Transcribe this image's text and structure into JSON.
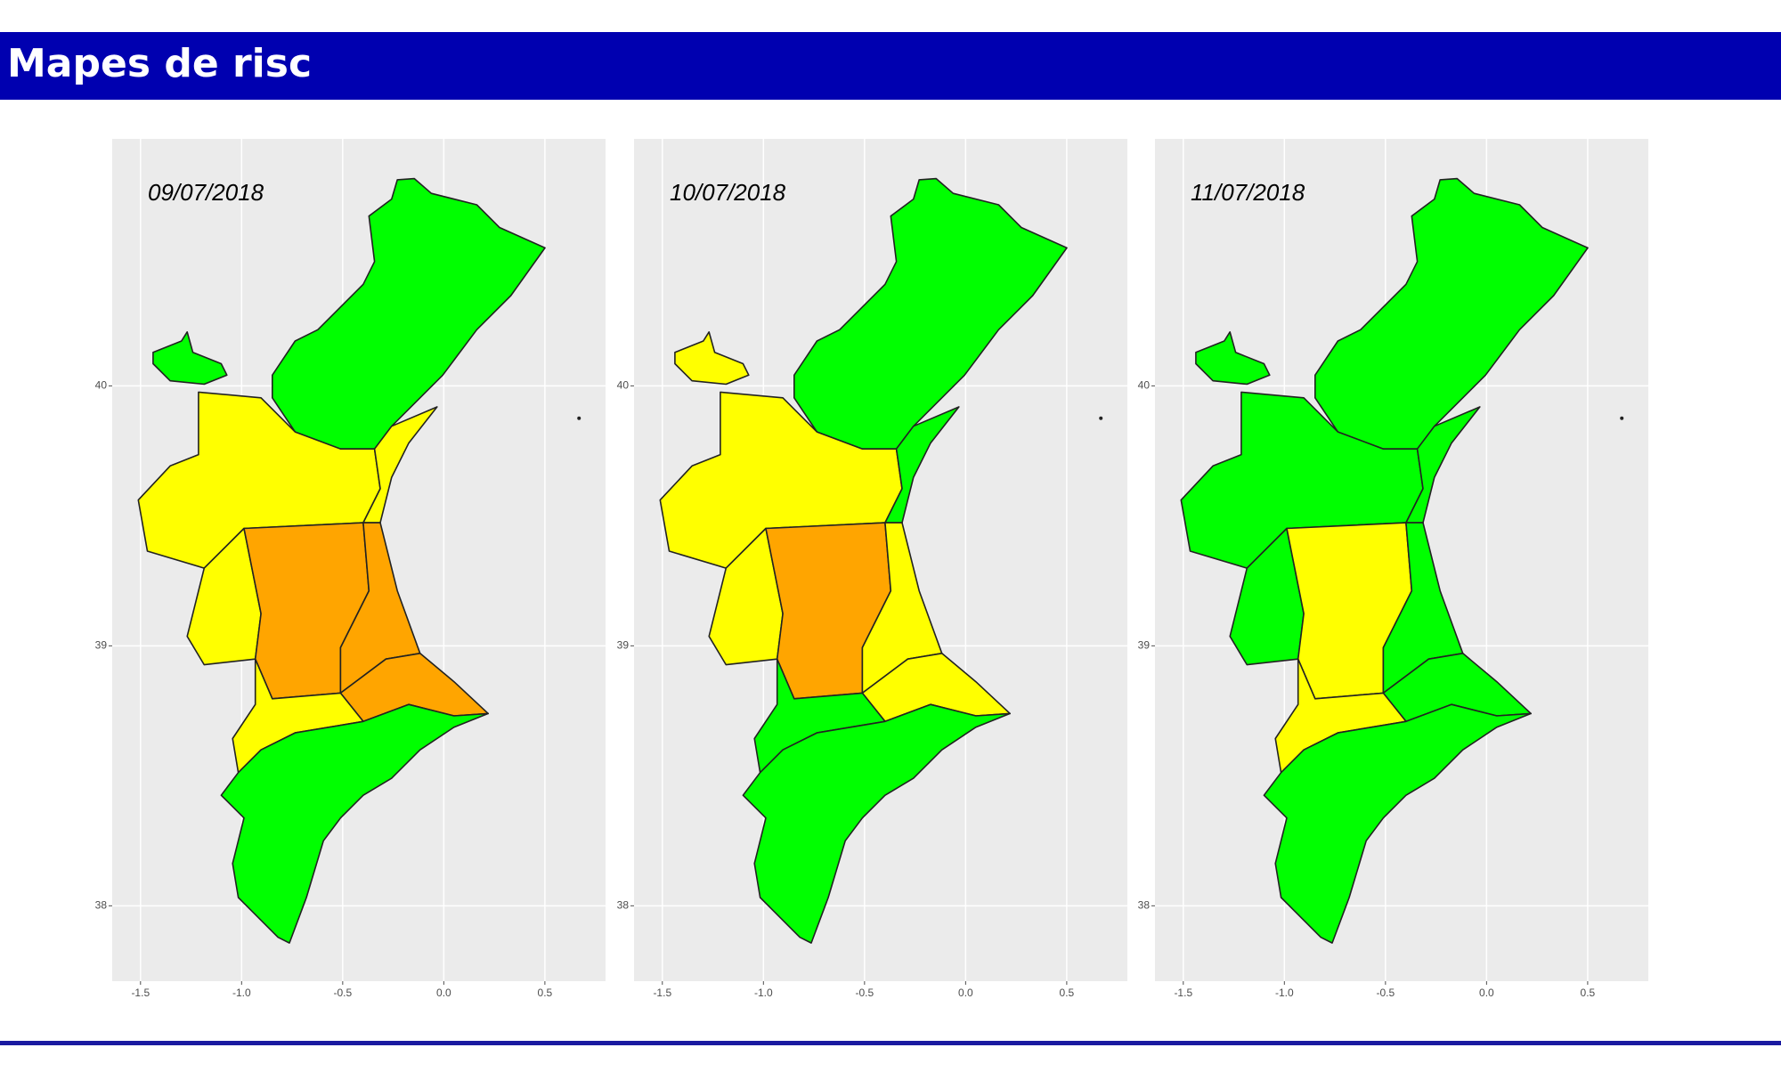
{
  "header": {
    "title": "Mapes de risc"
  },
  "maps": [
    {
      "date": "09/07/2018",
      "zone_colors": [
        "#00ff00",
        "#00ff00",
        "#ffff00",
        "#ffff00",
        "#ffff00",
        "#ffa500",
        "#ffa500",
        "#ffa500",
        "#ffff00",
        "#00ff00"
      ]
    },
    {
      "date": "10/07/2018",
      "zone_colors": [
        "#ffff00",
        "#00ff00",
        "#ffff00",
        "#00ff00",
        "#ffff00",
        "#ffa500",
        "#ffff00",
        "#ffff00",
        "#00ff00",
        "#00ff00"
      ]
    },
    {
      "date": "11/07/2018",
      "zone_colors": [
        "#00ff00",
        "#00ff00",
        "#00ff00",
        "#00ff00",
        "#00ff00",
        "#ffff00",
        "#00ff00",
        "#00ff00",
        "#ffff00",
        "#00ff00"
      ]
    }
  ],
  "axes": {
    "xlim": [
      -1.64,
      0.8
    ],
    "ylim": [
      37.71,
      40.95
    ],
    "xticks": [
      -1.5,
      {
        "value": -1,
        "label": "-1.0"
      },
      -0.5,
      {
        "value": 0,
        "label": "0.0"
      },
      0.5
    ],
    "yticks": [
      38,
      39,
      40
    ]
  }
}
